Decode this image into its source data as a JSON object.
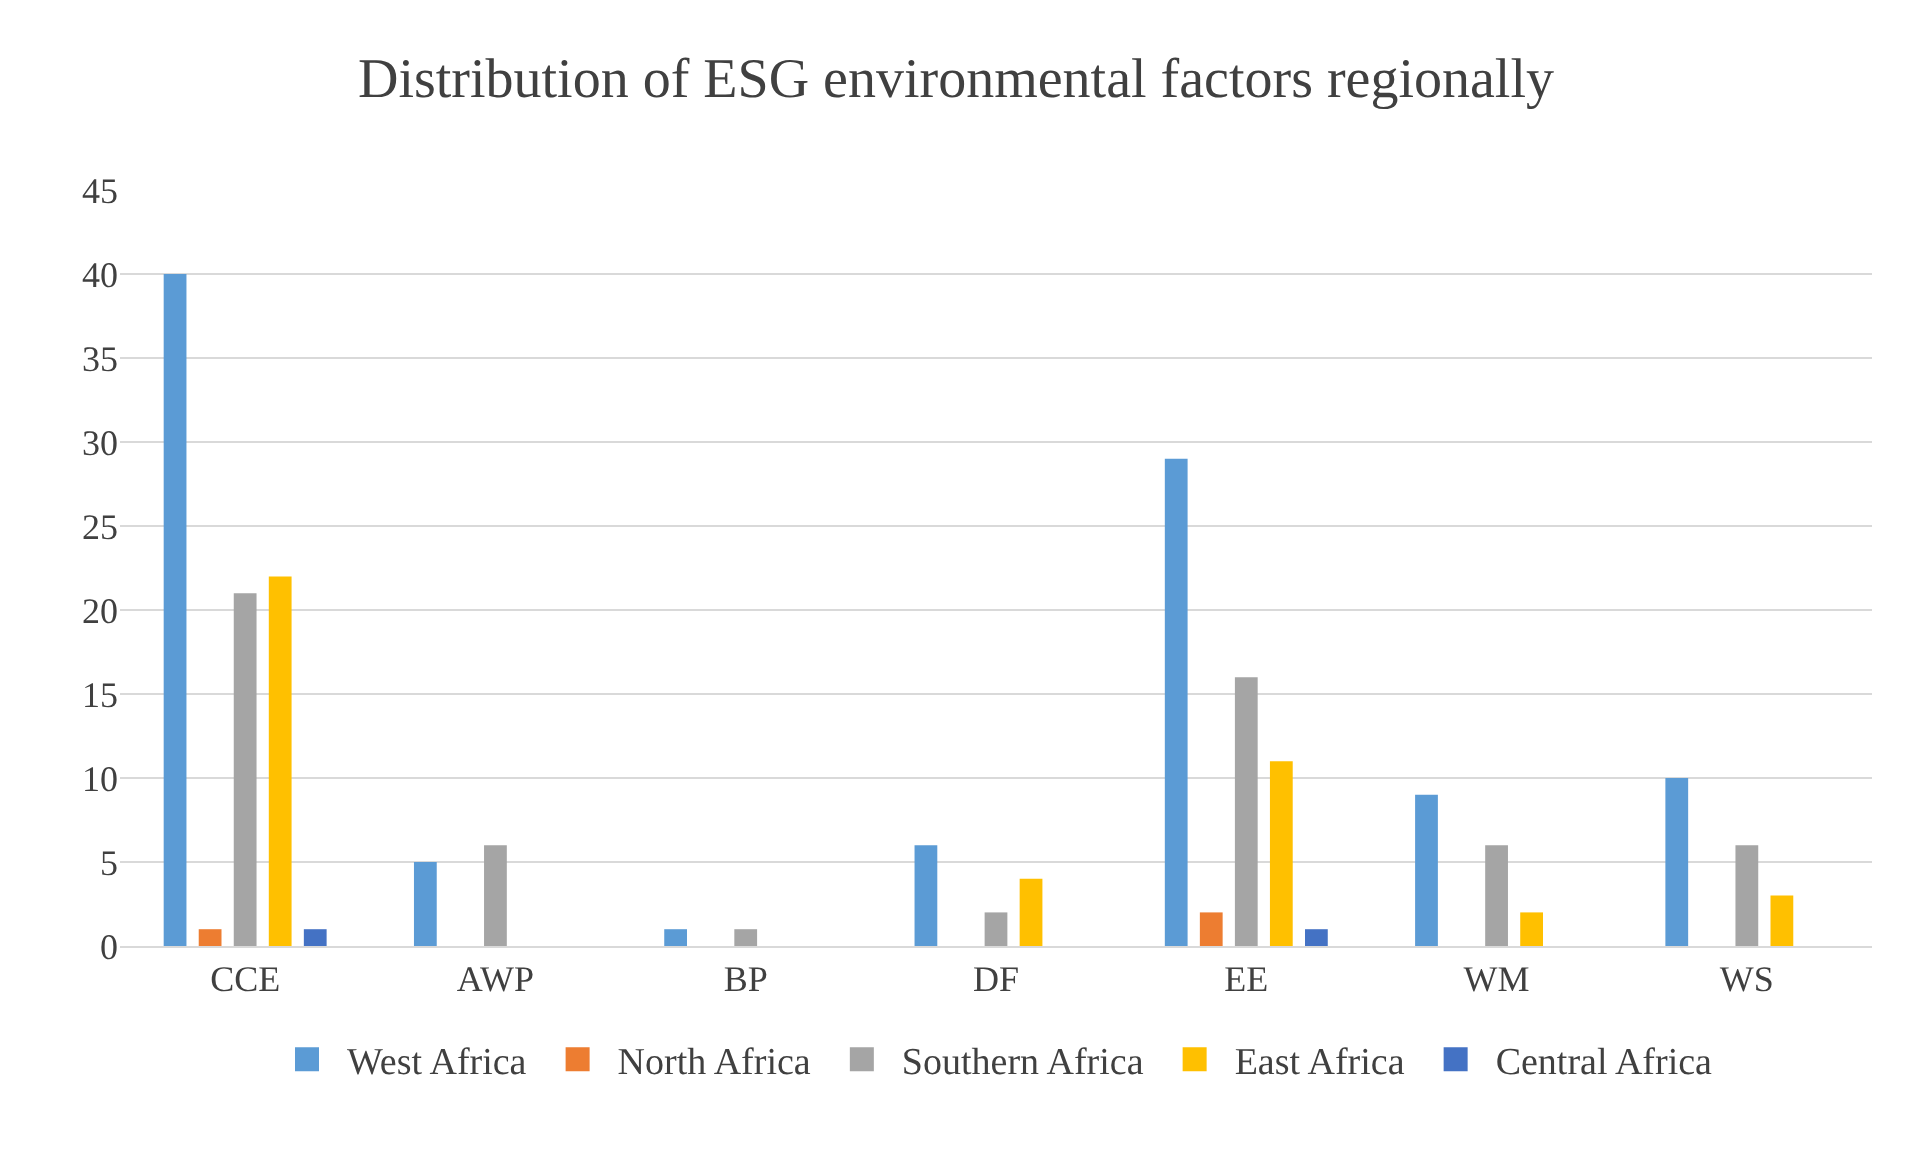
{
  "chart_data": {
    "type": "bar",
    "title": "Distribution of ESG environmental factors regionally",
    "categories": [
      "CCE",
      "AWP",
      "BP",
      "DF",
      "EE",
      "WM",
      "WS"
    ],
    "series": [
      {
        "name": "West Africa",
        "color": "#5b9bd5",
        "values": [
          40,
          5,
          1,
          6,
          29,
          9,
          10
        ]
      },
      {
        "name": "North Africa",
        "color": "#ed7d31",
        "values": [
          1,
          0,
          0,
          0,
          2,
          0,
          0
        ]
      },
      {
        "name": "Southern Africa",
        "color": "#a5a5a5",
        "values": [
          21,
          6,
          1,
          2,
          16,
          6,
          6
        ]
      },
      {
        "name": "East Africa",
        "color": "#ffc000",
        "values": [
          22,
          0,
          0,
          4,
          11,
          2,
          3
        ]
      },
      {
        "name": "Central Africa",
        "color": "#4472c4",
        "values": [
          1,
          0,
          0,
          0,
          1,
          0,
          0
        ]
      }
    ],
    "ylim": [
      0,
      45
    ],
    "yticks": [
      0,
      5,
      10,
      15,
      20,
      25,
      30,
      35,
      40,
      45
    ],
    "grid": "y",
    "legend": "bottom"
  }
}
